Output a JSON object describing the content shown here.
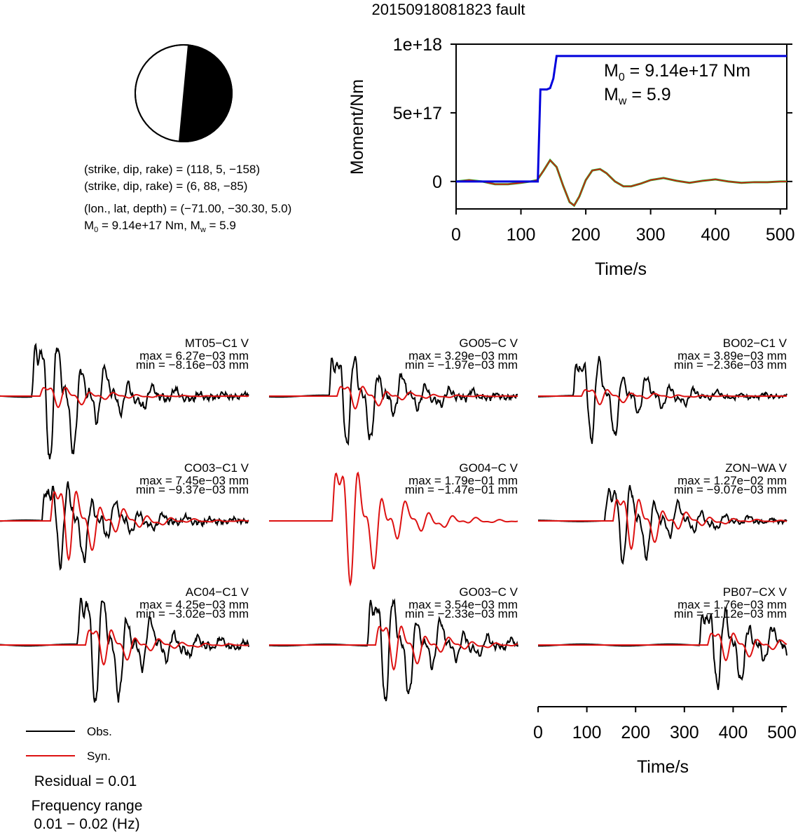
{
  "title": "20150918081823 fault",
  "mechanism": {
    "line1": "(strike, dip, rake) = (118, 5, −158)",
    "line2": "(strike, dip, rake) = (6, 88, −85)",
    "line3": "(lon., lat, depth) = (−71.00, −30.30, 5.0)",
    "m0_prefix": "M",
    "m0_sub": "0",
    "m0_text": " = 9.14e+17 Nm, M",
    "mw_sub": "w",
    "mw_text": " = 5.9"
  },
  "legend": {
    "obs": "Obs.",
    "syn": "Syn.",
    "residual": "Residual = 0.01",
    "freq_title": "Frequency range",
    "freq_range": "0.01 − 0.02 (Hz)"
  },
  "colors": {
    "obs": "#000000",
    "syn": "#dd1111",
    "moment": "#0000dd",
    "rate_green": "#22aa22",
    "rate_red": "#dd1111"
  },
  "chart_data": [
    {
      "type": "line",
      "name": "moment",
      "xlabel": "Time/s",
      "ylabel": "Moment/Nm",
      "xlim": [
        0,
        510
      ],
      "ylim": [
        -2e+17,
        1e+18
      ],
      "x_ticks": [
        0,
        100,
        200,
        300,
        400,
        500
      ],
      "y_ticks": [
        0,
        5e+17,
        1e+18
      ],
      "y_tick_labels": [
        "0",
        "5e+17",
        "1e+18"
      ],
      "annotation": {
        "m0_label": "M",
        "m0_sub": "0",
        "m0_value": " = 9.14e+17 Nm",
        "mw_label": "M",
        "mw_sub": "w",
        "mw_value": " = 5.9"
      },
      "series": [
        {
          "color": "blue",
          "x": [
            0,
            126,
            130,
            140,
            145,
            150,
            155,
            510
          ],
          "y": [
            0,
            0,
            6.7e+17,
            6.7e+17,
            6.8e+17,
            7.5e+17,
            9.14e+17,
            9.14e+17
          ]
        }
      ],
      "rate_series": {
        "x": [
          0,
          20,
          40,
          60,
          80,
          100,
          115,
          125,
          135,
          145,
          155,
          165,
          175,
          182,
          190,
          200,
          210,
          222,
          232,
          245,
          258,
          270,
          285,
          300,
          320,
          340,
          360,
          380,
          400,
          420,
          440,
          460,
          480,
          500,
          510
        ],
        "y": [
          0,
          1e+16,
          0,
          -2e+16,
          -2e+16,
          -1e+16,
          0,
          1e+16,
          8e+16,
          1.55e+17,
          1.05e+17,
          -3e+16,
          -1.5e+17,
          -1.75e+17,
          -1.1e+17,
          1e+16,
          8e+16,
          9e+16,
          6e+16,
          0,
          -3.5e+16,
          -3.5e+16,
          -1.5e+16,
          1e+16,
          2.5e+16,
          5000000000000000.0,
          -1e+16,
          5000000000000000.0,
          1.5e+16,
          0,
          -1e+16,
          -5000000000000000.0,
          -5000000000000000.0,
          0,
          0
        ]
      }
    },
    {
      "type": "line",
      "name": "waveforms",
      "xlabel": "Time/s",
      "xlim": [
        0,
        510
      ],
      "x_ticks": [
        0,
        100,
        200,
        300,
        400,
        500
      ],
      "stations": [
        {
          "label": "MT05−C1 V",
          "max": "max = 6.27e−03 mm",
          "min": "min = −8.16e−03 mm"
        },
        {
          "label": "GO05−C V",
          "max": "max = 3.29e−03 mm",
          "min": "min = −1.97e−03 mm"
        },
        {
          "label": "BO02−C1 V",
          "max": "max = 3.89e−03 mm",
          "min": "min = −2.36e−03 mm"
        },
        {
          "label": "CO03−C1 V",
          "max": "max = 7.45e−03 mm",
          "min": "min = −9.37e−03 mm"
        },
        {
          "label": "GO04−C V",
          "max": "max = 1.79e−01 mm",
          "min": "min = −1.47e−01 mm"
        },
        {
          "label": "ZON−WA V",
          "max": "max = 1.27e−02 mm",
          "min": "min = −9.07e−03 mm"
        },
        {
          "label": "AC04−C1 V",
          "max": "max = 4.25e−03 mm",
          "min": "min = −3.02e−03 mm"
        },
        {
          "label": "GO03−C V",
          "max": "max = 3.54e−03 mm",
          "min": "min = −2.33e−03 mm"
        },
        {
          "label": "PB07−CX V",
          "max": "max = 1.76e−03 mm",
          "min": "min = −1.12e−03 mm"
        }
      ]
    }
  ]
}
